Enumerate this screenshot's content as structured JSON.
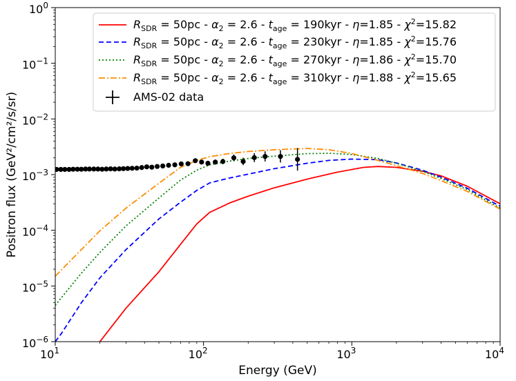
{
  "chart_data": {
    "type": "line",
    "xlabel": "Energy (GeV)",
    "ylabel": "Positron flux (GeV²/cm²/s/sr)",
    "xscale": "log",
    "yscale": "log",
    "xlim": [
      10,
      10000
    ],
    "ylim": [
      1e-06,
      1
    ],
    "x_ticks": [
      {
        "value": 10,
        "base": "10",
        "exp": "1"
      },
      {
        "value": 100,
        "base": "10",
        "exp": "2"
      },
      {
        "value": 1000,
        "base": "10",
        "exp": "3"
      },
      {
        "value": 10000,
        "base": "10",
        "exp": "4"
      }
    ],
    "y_ticks": [
      {
        "value": 1e-06,
        "base": "10",
        "exp": "−6"
      },
      {
        "value": 1e-05,
        "base": "10",
        "exp": "−5"
      },
      {
        "value": 0.0001,
        "base": "10",
        "exp": "−4"
      },
      {
        "value": 0.001,
        "base": "10",
        "exp": "−3"
      },
      {
        "value": 0.01,
        "base": "10",
        "exp": "−2"
      },
      {
        "value": 0.1,
        "base": "10",
        "exp": "−1"
      },
      {
        "value": 1,
        "base": "10",
        "exp": "0"
      }
    ],
    "legend_position": "top-right",
    "series": [
      {
        "name": "R_SDR = 50pc - α₂ = 2.6 - t_age = 190kyr - η=1.85 - χ²=15.82",
        "legend": {
          "R": "50pc",
          "alpha": "2.6",
          "tage": "190kyr",
          "eta": "1.85",
          "chi2": "15.82"
        },
        "color": "#ff0000",
        "style": "solid",
        "x": [
          20,
          30,
          50,
          70,
          90,
          110,
          150,
          200,
          300,
          500,
          800,
          1200,
          1500,
          2000,
          3000,
          4000,
          6000,
          10000
        ],
        "y": [
          1e-06,
          4e-06,
          1.8e-05,
          5.6e-05,
          0.00013,
          0.00021,
          0.00031,
          0.00041,
          0.00058,
          0.00083,
          0.00111,
          0.00135,
          0.0014,
          0.00135,
          0.00115,
          0.00095,
          0.00062,
          0.0003
        ]
      },
      {
        "name": "R_SDR = 50pc - α₂ = 2.6 - t_age = 230kyr - η=1.85 - χ²=15.76",
        "legend": {
          "R": "50pc",
          "alpha": "2.6",
          "tage": "230kyr",
          "eta": "1.85",
          "chi2": "15.76"
        },
        "color": "#0000ff",
        "style": "dashed",
        "x": [
          10,
          11,
          15,
          20,
          30,
          50,
          70,
          90,
          110,
          150,
          200,
          300,
          500,
          700,
          1000,
          1500,
          2000,
          3000,
          4000,
          6000,
          10000
        ],
        "y": [
          1e-06,
          1.4e-06,
          5e-06,
          1.4e-05,
          4.5e-05,
          0.00016,
          0.00032,
          0.00052,
          0.00071,
          0.00087,
          0.00102,
          0.00128,
          0.0016,
          0.0018,
          0.0019,
          0.00186,
          0.00162,
          0.0012,
          0.0009,
          0.00057,
          0.00027
        ]
      },
      {
        "name": "R_SDR = 50pc - α₂ = 2.6 - t_age = 270kyr - η=1.86 - χ²=15.70",
        "legend": {
          "R": "50pc",
          "alpha": "2.6",
          "tage": "270kyr",
          "eta": "1.86",
          "chi2": "15.70"
        },
        "color": "#008000",
        "style": "dotted",
        "x": [
          10,
          15,
          20,
          30,
          50,
          70,
          90,
          110,
          150,
          200,
          300,
          500,
          700,
          1000,
          1500,
          2000,
          3000,
          4000,
          6000,
          10000
        ],
        "y": [
          4.5e-06,
          1.7e-05,
          4e-05,
          0.00012,
          0.00038,
          0.0008,
          0.0012,
          0.0015,
          0.00175,
          0.00195,
          0.00215,
          0.00238,
          0.00242,
          0.0023,
          0.00195,
          0.0016,
          0.00115,
          0.00085,
          0.00054,
          0.00025
        ]
      },
      {
        "name": "R_SDR = 50pc - α₂ = 2.6 - t_age = 310kyr - η=1.88 - χ²=15.65",
        "legend": {
          "R": "50pc",
          "alpha": "2.6",
          "tage": "310kyr",
          "eta": "1.88",
          "chi2": "15.65"
        },
        "color": "#ff8c00",
        "style": "dashdot",
        "x": [
          10,
          15,
          20,
          30,
          50,
          70,
          90,
          110,
          150,
          200,
          300,
          500,
          700,
          1000,
          1500,
          2000,
          3000,
          4000,
          6000,
          10000
        ],
        "y": [
          1.5e-05,
          4.5e-05,
          9.8e-05,
          0.00025,
          0.0007,
          0.00135,
          0.0018,
          0.0021,
          0.0024,
          0.0026,
          0.0028,
          0.00295,
          0.0028,
          0.0024,
          0.0018,
          0.00145,
          0.00105,
          0.00078,
          0.0005,
          0.00024
        ]
      }
    ],
    "data_points": {
      "name": "AMS-02 data",
      "color": "#000000",
      "points": [
        {
          "x": 10.2,
          "y": 0.00124,
          "lo": 0.00121,
          "hi": 0.00127
        },
        {
          "x": 10.9,
          "y": 0.00124,
          "lo": 0.00121,
          "hi": 0.00127
        },
        {
          "x": 11.6,
          "y": 0.00124,
          "lo": 0.00121,
          "hi": 0.00127
        },
        {
          "x": 12.4,
          "y": 0.00124,
          "lo": 0.00121,
          "hi": 0.00127
        },
        {
          "x": 13.2,
          "y": 0.00125,
          "lo": 0.00122,
          "hi": 0.00128
        },
        {
          "x": 14.1,
          "y": 0.00125,
          "lo": 0.00122,
          "hi": 0.00128
        },
        {
          "x": 15.0,
          "y": 0.00125,
          "lo": 0.00122,
          "hi": 0.00128
        },
        {
          "x": 16.0,
          "y": 0.00126,
          "lo": 0.00123,
          "hi": 0.00129
        },
        {
          "x": 17.0,
          "y": 0.00126,
          "lo": 0.00123,
          "hi": 0.00129
        },
        {
          "x": 18.2,
          "y": 0.00126,
          "lo": 0.00123,
          "hi": 0.00129
        },
        {
          "x": 19.4,
          "y": 0.00126,
          "lo": 0.00123,
          "hi": 0.00129
        },
        {
          "x": 20.7,
          "y": 0.00125,
          "lo": 0.00122,
          "hi": 0.00128
        },
        {
          "x": 22.1,
          "y": 0.00126,
          "lo": 0.00122,
          "hi": 0.0013
        },
        {
          "x": 23.6,
          "y": 0.00127,
          "lo": 0.00123,
          "hi": 0.00131
        },
        {
          "x": 25.2,
          "y": 0.00126,
          "lo": 0.00122,
          "hi": 0.0013
        },
        {
          "x": 27.0,
          "y": 0.00127,
          "lo": 0.00123,
          "hi": 0.00131
        },
        {
          "x": 28.8,
          "y": 0.00128,
          "lo": 0.00124,
          "hi": 0.00132
        },
        {
          "x": 30.8,
          "y": 0.00129,
          "lo": 0.00125,
          "hi": 0.00133
        },
        {
          "x": 33.0,
          "y": 0.0013,
          "lo": 0.00126,
          "hi": 0.00134
        },
        {
          "x": 35.5,
          "y": 0.00131,
          "lo": 0.00127,
          "hi": 0.00135
        },
        {
          "x": 38.3,
          "y": 0.00134,
          "lo": 0.00129,
          "hi": 0.00139
        },
        {
          "x": 41.4,
          "y": 0.00138,
          "lo": 0.00133,
          "hi": 0.00143
        },
        {
          "x": 44.8,
          "y": 0.00136,
          "lo": 0.00131,
          "hi": 0.00141
        },
        {
          "x": 48.7,
          "y": 0.0014,
          "lo": 0.00134,
          "hi": 0.00146
        },
        {
          "x": 53.1,
          "y": 0.00143,
          "lo": 0.00137,
          "hi": 0.00149
        },
        {
          "x": 58.1,
          "y": 0.00147,
          "lo": 0.0014,
          "hi": 0.00154
        },
        {
          "x": 64.0,
          "y": 0.0015,
          "lo": 0.00143,
          "hi": 0.00158
        },
        {
          "x": 70.7,
          "y": 0.00156,
          "lo": 0.00148,
          "hi": 0.00165
        },
        {
          "x": 78.5,
          "y": 0.00157,
          "lo": 0.00148,
          "hi": 0.00167
        },
        {
          "x": 88.0,
          "y": 0.00178,
          "lo": 0.00166,
          "hi": 0.0019
        },
        {
          "x": 97.0,
          "y": 0.00168,
          "lo": 0.00155,
          "hi": 0.00182
        },
        {
          "x": 107.0,
          "y": 0.0016,
          "lo": 0.00146,
          "hi": 0.00176
        },
        {
          "x": 120.0,
          "y": 0.00168,
          "lo": 0.00152,
          "hi": 0.00186
        },
        {
          "x": 135.0,
          "y": 0.00172,
          "lo": 0.00154,
          "hi": 0.00193
        },
        {
          "x": 160.0,
          "y": 0.002,
          "lo": 0.00175,
          "hi": 0.0023
        },
        {
          "x": 185.0,
          "y": 0.00172,
          "lo": 0.00148,
          "hi": 0.00201
        },
        {
          "x": 220.0,
          "y": 0.00202,
          "lo": 0.00168,
          "hi": 0.00243
        },
        {
          "x": 260.0,
          "y": 0.00212,
          "lo": 0.00172,
          "hi": 0.00262
        },
        {
          "x": 330.0,
          "y": 0.00212,
          "lo": 0.00165,
          "hi": 0.00275
        },
        {
          "x": 430.0,
          "y": 0.00188,
          "lo": 0.00118,
          "hi": 0.003
        }
      ]
    },
    "legend_text": {
      "R_label": "R",
      "R_sub": "SDR",
      "alpha_label": "α",
      "alpha_sub": "2",
      "t_label": "t",
      "t_sub": "age",
      "eta_label": "η",
      "chi_label": "χ",
      "chi_sup": "2",
      "data_label": "AMS-02 data"
    }
  }
}
